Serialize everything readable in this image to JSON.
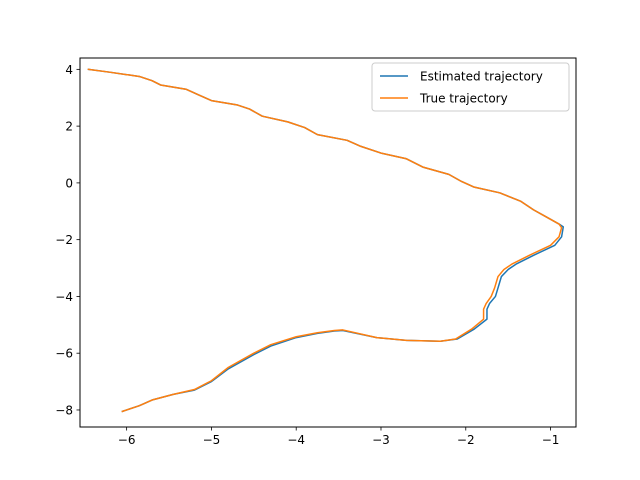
{
  "chart_data": {
    "type": "line",
    "title": "",
    "xlabel": "",
    "ylabel": "",
    "xlim": [
      -6.55,
      -0.7
    ],
    "ylim": [
      -8.6,
      4.4
    ],
    "xticks": [
      -6,
      -5,
      -4,
      -3,
      -2,
      -1
    ],
    "yticks": [
      -8,
      -6,
      -4,
      -2,
      0,
      2,
      4
    ],
    "xtick_labels": [
      "−6",
      "−5",
      "−4",
      "−3",
      "−2",
      "−1"
    ],
    "ytick_labels": [
      "−8",
      "−6",
      "−4",
      "−2",
      "0",
      "2",
      "4"
    ],
    "grid": false,
    "legend_position": "top-right",
    "series": [
      {
        "name": "Estimated trajectory",
        "color": "#1f77b4",
        "points": [
          [
            -6.45,
            4.0
          ],
          [
            -6.2,
            3.9
          ],
          [
            -5.85,
            3.75
          ],
          [
            -5.7,
            3.6
          ],
          [
            -5.6,
            3.45
          ],
          [
            -5.3,
            3.3
          ],
          [
            -5.15,
            3.1
          ],
          [
            -5.0,
            2.9
          ],
          [
            -4.7,
            2.75
          ],
          [
            -4.55,
            2.6
          ],
          [
            -4.4,
            2.35
          ],
          [
            -4.1,
            2.15
          ],
          [
            -3.9,
            1.95
          ],
          [
            -3.75,
            1.7
          ],
          [
            -3.4,
            1.5
          ],
          [
            -3.25,
            1.3
          ],
          [
            -3.0,
            1.05
          ],
          [
            -2.7,
            0.85
          ],
          [
            -2.5,
            0.55
          ],
          [
            -2.2,
            0.3
          ],
          [
            -2.05,
            0.05
          ],
          [
            -1.9,
            -0.15
          ],
          [
            -1.6,
            -0.35
          ],
          [
            -1.35,
            -0.65
          ],
          [
            -1.2,
            -0.95
          ],
          [
            -1.05,
            -1.2
          ],
          [
            -0.9,
            -1.45
          ],
          [
            -0.85,
            -1.55
          ],
          [
            -0.87,
            -1.9
          ],
          [
            -0.95,
            -2.2
          ],
          [
            -1.2,
            -2.55
          ],
          [
            -1.4,
            -2.85
          ],
          [
            -1.5,
            -3.05
          ],
          [
            -1.58,
            -3.3
          ],
          [
            -1.6,
            -3.5
          ],
          [
            -1.62,
            -3.7
          ],
          [
            -1.65,
            -4.0
          ],
          [
            -1.72,
            -4.25
          ],
          [
            -1.75,
            -4.45
          ],
          [
            -1.75,
            -4.8
          ],
          [
            -1.9,
            -5.15
          ],
          [
            -2.1,
            -5.5
          ],
          [
            -2.3,
            -5.58
          ],
          [
            -2.7,
            -5.55
          ],
          [
            -3.05,
            -5.45
          ],
          [
            -3.45,
            -5.2
          ],
          [
            -3.55,
            -5.22
          ],
          [
            -3.75,
            -5.3
          ],
          [
            -4.0,
            -5.45
          ],
          [
            -4.3,
            -5.75
          ],
          [
            -4.5,
            -6.05
          ],
          [
            -4.8,
            -6.55
          ],
          [
            -5.0,
            -7.0
          ],
          [
            -5.2,
            -7.3
          ],
          [
            -5.45,
            -7.45
          ],
          [
            -5.7,
            -7.65
          ],
          [
            -5.85,
            -7.85
          ],
          [
            -6.05,
            -8.05
          ]
        ]
      },
      {
        "name": "True trajectory",
        "color": "#ff7f0e",
        "points": [
          [
            -6.45,
            4.0
          ],
          [
            -6.2,
            3.9
          ],
          [
            -5.85,
            3.75
          ],
          [
            -5.7,
            3.6
          ],
          [
            -5.6,
            3.45
          ],
          [
            -5.3,
            3.3
          ],
          [
            -5.15,
            3.1
          ],
          [
            -5.0,
            2.9
          ],
          [
            -4.7,
            2.75
          ],
          [
            -4.55,
            2.6
          ],
          [
            -4.4,
            2.35
          ],
          [
            -4.1,
            2.15
          ],
          [
            -3.9,
            1.95
          ],
          [
            -3.75,
            1.7
          ],
          [
            -3.4,
            1.5
          ],
          [
            -3.25,
            1.3
          ],
          [
            -3.0,
            1.05
          ],
          [
            -2.7,
            0.85
          ],
          [
            -2.5,
            0.55
          ],
          [
            -2.2,
            0.3
          ],
          [
            -2.05,
            0.05
          ],
          [
            -1.9,
            -0.15
          ],
          [
            -1.6,
            -0.35
          ],
          [
            -1.35,
            -0.65
          ],
          [
            -1.2,
            -0.95
          ],
          [
            -1.05,
            -1.2
          ],
          [
            -0.9,
            -1.45
          ],
          [
            -0.87,
            -1.58
          ],
          [
            -0.9,
            -1.9
          ],
          [
            -1.0,
            -2.2
          ],
          [
            -1.25,
            -2.55
          ],
          [
            -1.45,
            -2.85
          ],
          [
            -1.55,
            -3.05
          ],
          [
            -1.62,
            -3.3
          ],
          [
            -1.64,
            -3.5
          ],
          [
            -1.66,
            -3.7
          ],
          [
            -1.7,
            -4.0
          ],
          [
            -1.76,
            -4.25
          ],
          [
            -1.79,
            -4.45
          ],
          [
            -1.79,
            -4.8
          ],
          [
            -1.93,
            -5.15
          ],
          [
            -2.12,
            -5.5
          ],
          [
            -2.3,
            -5.58
          ],
          [
            -2.7,
            -5.55
          ],
          [
            -3.05,
            -5.45
          ],
          [
            -3.45,
            -5.18
          ],
          [
            -3.55,
            -5.2
          ],
          [
            -3.75,
            -5.28
          ],
          [
            -4.0,
            -5.42
          ],
          [
            -4.3,
            -5.7
          ],
          [
            -4.5,
            -6.0
          ],
          [
            -4.8,
            -6.5
          ],
          [
            -5.0,
            -6.97
          ],
          [
            -5.2,
            -7.28
          ],
          [
            -5.45,
            -7.45
          ],
          [
            -5.7,
            -7.65
          ],
          [
            -5.85,
            -7.85
          ],
          [
            -6.05,
            -8.05
          ]
        ]
      }
    ]
  }
}
